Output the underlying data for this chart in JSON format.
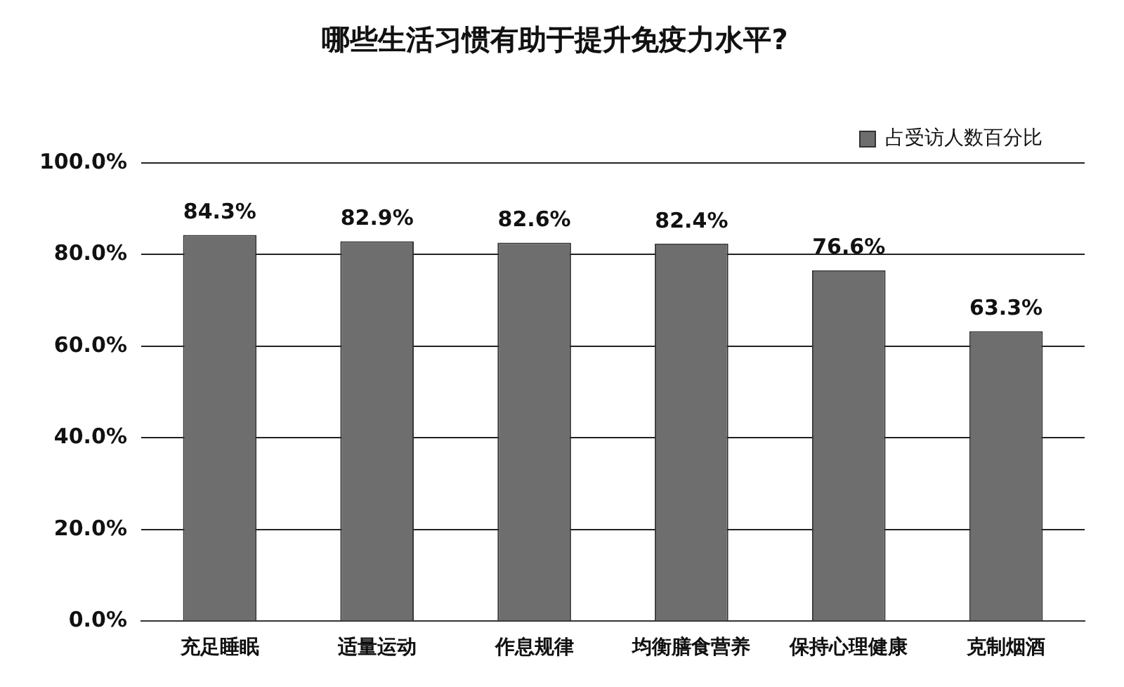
{
  "chart_data": {
    "type": "bar",
    "title": "哪些生活习惯有助于提升免疫力水平?",
    "categories": [
      "充足睡眠",
      "适量运动",
      "作息规律",
      "均衡膳食营养",
      "保持心理健康",
      "克制烟酒"
    ],
    "series": [
      {
        "name": "占受访人数百分比",
        "color": "#6e6e6e",
        "values": [
          84.3,
          82.9,
          82.6,
          82.4,
          76.6,
          63.3
        ],
        "value_labels": [
          "84.3%",
          "82.9%",
          "82.6%",
          "82.4%",
          "76.6%",
          "63.3%"
        ]
      }
    ],
    "ylim": [
      0,
      100
    ],
    "yticks": [
      {
        "value": 0,
        "label": "0.0%"
      },
      {
        "value": 20,
        "label": "20.0%"
      },
      {
        "value": 40,
        "label": "40.0%"
      },
      {
        "value": 60,
        "label": "60.0%"
      },
      {
        "value": 80,
        "label": "80.0%"
      },
      {
        "value": 100,
        "label": "100.0%"
      }
    ],
    "grid": "y",
    "legend": "top right"
  }
}
